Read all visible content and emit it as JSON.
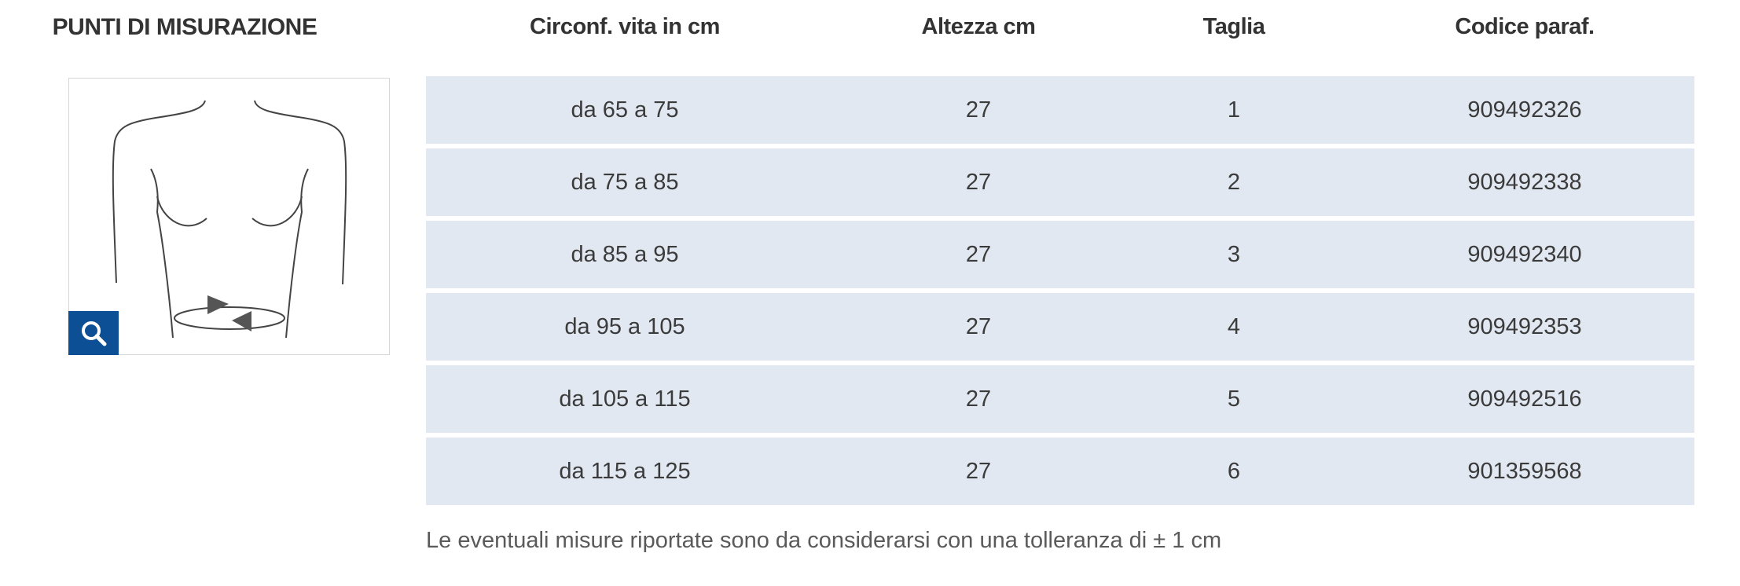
{
  "left_title": "PUNTI DI MISURAZIONE",
  "headers": {
    "circonferenza": "Circonf. vita in cm",
    "altezza": "Altezza cm",
    "taglia": "Taglia",
    "codice": "Codice paraf."
  },
  "rows": [
    {
      "circonferenza": "da 65 a 75",
      "altezza": "27",
      "taglia": "1",
      "codice": "909492326"
    },
    {
      "circonferenza": "da 75 a 85",
      "altezza": "27",
      "taglia": "2",
      "codice": "909492338"
    },
    {
      "circonferenza": "da 85 a 95",
      "altezza": "27",
      "taglia": "3",
      "codice": "909492340"
    },
    {
      "circonferenza": "da 95 a 105",
      "altezza": "27",
      "taglia": "4",
      "codice": "909492353"
    },
    {
      "circonferenza": "da 105 a 115",
      "altezza": "27",
      "taglia": "5",
      "codice": "909492516"
    },
    {
      "circonferenza": "da 115 a 125",
      "altezza": "27",
      "taglia": "6",
      "codice": "901359568"
    }
  ],
  "note": "Le eventuali misure riportate sono da considerarsi con una tolleranza di ± 1 cm",
  "icons": {
    "zoom": "search-icon",
    "figure": "torso-measurement-illustration"
  },
  "colors": {
    "row_bg": "#e1e8f1",
    "zoom_bg": "#0d4f95"
  }
}
